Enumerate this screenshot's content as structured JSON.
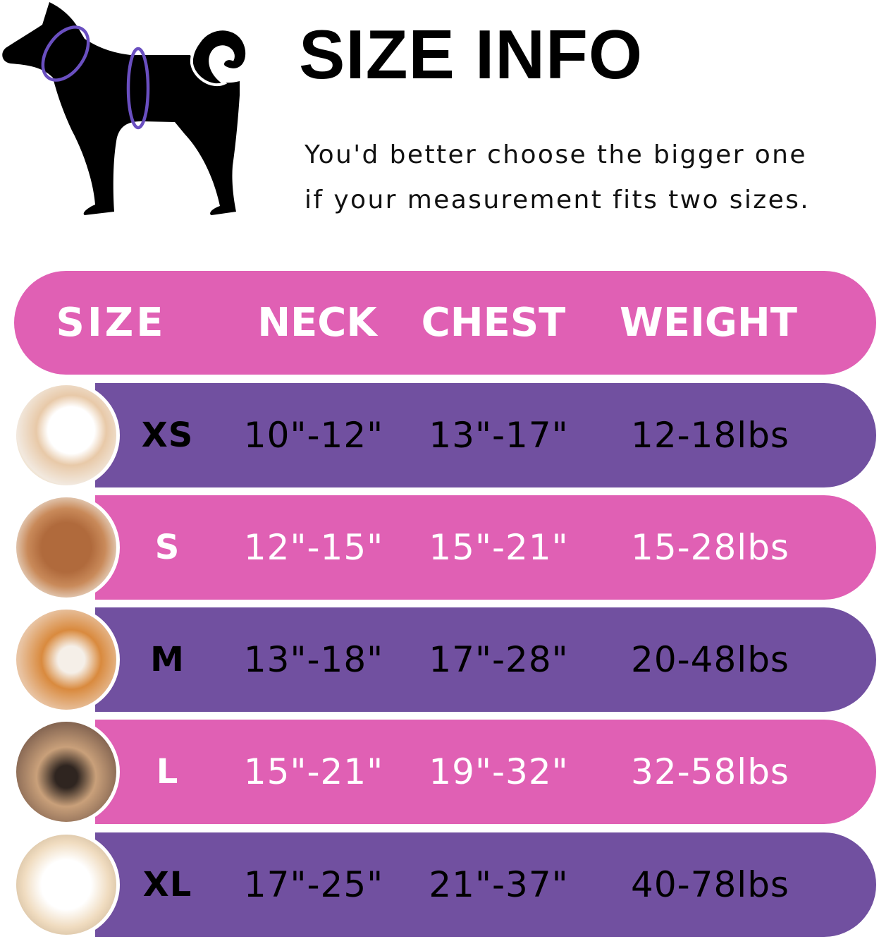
{
  "title": "SIZE INFO",
  "subtitle_lines": [
    "You'd better choose the bigger one",
    "if your measurement fits two sizes."
  ],
  "colors": {
    "pink": "#e060b4",
    "purple": "#7150a0",
    "ring": "#6a4fc0"
  },
  "table": {
    "headers": [
      "SIZE",
      "NECK",
      "CHEST",
      "WEIGHT"
    ],
    "rows": [
      {
        "size": "XS",
        "neck": "10\"-12\"",
        "chest": "13\"-17\"",
        "weight": "12-18lbs",
        "color": "purple",
        "photo": "pomeranian-photo"
      },
      {
        "size": "S",
        "neck": "12\"-15\"",
        "chest": "15\"-21\"",
        "weight": "15-28lbs",
        "color": "pink",
        "photo": "poodle-photo"
      },
      {
        "size": "M",
        "neck": "13\"-18\"",
        "chest": "17\"-28\"",
        "weight": "20-48lbs",
        "color": "purple",
        "photo": "shiba-photo"
      },
      {
        "size": "L",
        "neck": "15\"-21\"",
        "chest": "19\"-32\"",
        "weight": "32-58lbs",
        "color": "pink",
        "photo": "french-bulldog-photo"
      },
      {
        "size": "XL",
        "neck": "17\"-25\"",
        "chest": "21\"-37\"",
        "weight": "40-78lbs",
        "color": "purple",
        "photo": "labrador-photo"
      }
    ]
  }
}
